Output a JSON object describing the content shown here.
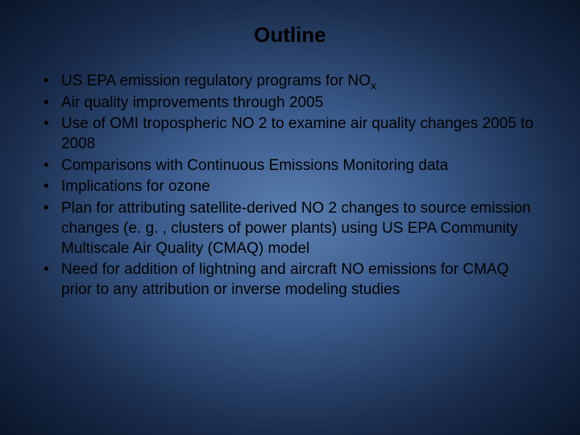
{
  "slide": {
    "title": "Outline",
    "bullets": [
      {
        "text_html": "US EPA emission regulatory programs for NO<span class=\"sub\">x</span>"
      },
      {
        "text_html": "Air quality improvements through 2005"
      },
      {
        "text_html": "Use of OMI tropospheric NO 2 to examine air quality changes 2005 to 2008"
      },
      {
        "text_html": "Comparisons with Continuous Emissions Monitoring data"
      },
      {
        "text_html": "Implications for ozone"
      },
      {
        "text_html": "Plan for attributing satellite-derived NO 2 changes to source emission changes (e. g. , clusters of power plants) using US EPA Community Multiscale Air Quality (CMAQ) model"
      },
      {
        "text_html": "Need for addition of lightning and aircraft NO emissions for CMAQ prior to any attribution or inverse modeling studies"
      }
    ],
    "style": {
      "background_gradient": {
        "center": "#5a7fb0",
        "mid": "#3a5a8a",
        "outer": "#1a2d4d",
        "edge": "#0a1528"
      },
      "text_color": "#000000",
      "title_fontsize": 26,
      "bullet_fontsize": 19,
      "font_family": "Arial"
    }
  }
}
